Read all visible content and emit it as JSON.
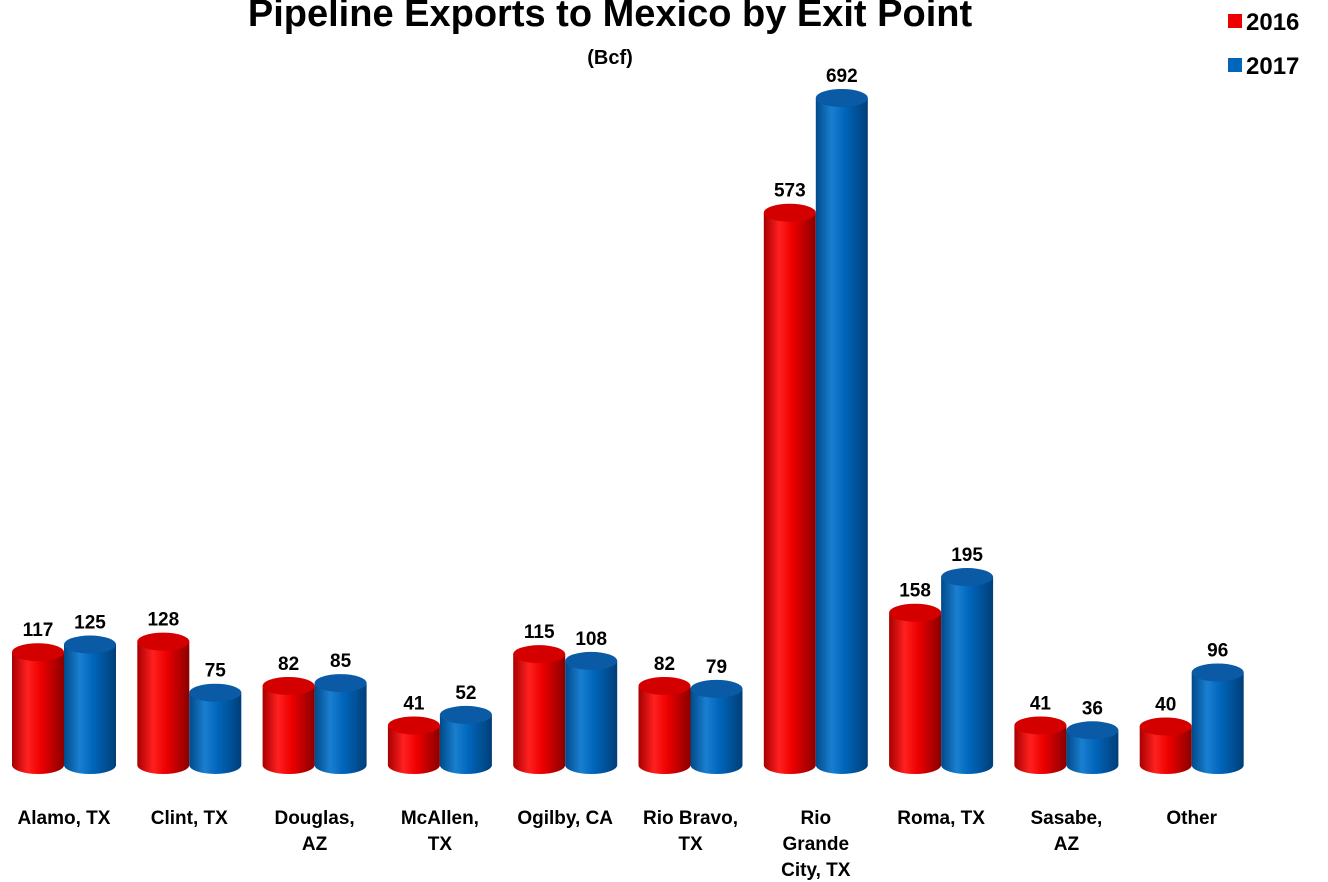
{
  "chart_data": {
    "type": "bar",
    "title": "Pipeline Exports to Mexico by Exit Point",
    "subtitle": "(Bcf)",
    "categories": [
      [
        "Alamo, TX"
      ],
      [
        "Clint, TX"
      ],
      [
        "Douglas,",
        "AZ"
      ],
      [
        "McAllen,",
        "TX"
      ],
      [
        "Ogilby, CA"
      ],
      [
        "Rio Bravo,",
        "TX"
      ],
      [
        "Rio",
        "Grande",
        "City, TX"
      ],
      [
        "Roma, TX"
      ],
      [
        "Sasabe,",
        "AZ"
      ],
      [
        "Other"
      ]
    ],
    "series": [
      {
        "name": "2016",
        "color": "#ee0000",
        "values": [
          117,
          128,
          82,
          41,
          115,
          82,
          573,
          158,
          41,
          40
        ]
      },
      {
        "name": "2017",
        "color": "#0066bb",
        "values": [
          125,
          75,
          85,
          52,
          108,
          79,
          692,
          195,
          36,
          96
        ]
      }
    ],
    "legend_position": "top-right",
    "ylim": [
      0,
      692
    ],
    "grid": false,
    "style": "3d-cylinder"
  }
}
